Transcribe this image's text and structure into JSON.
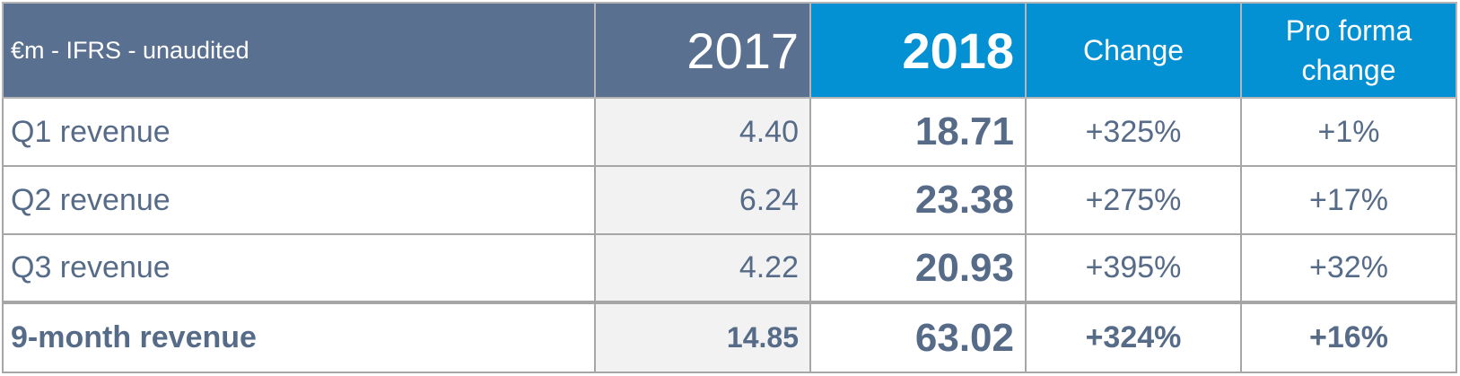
{
  "header": {
    "label": "€m - IFRS - unaudited",
    "col_2017": "2017",
    "col_2018": "2018",
    "col_change": "Change",
    "col_pro_forma": "Pro forma change"
  },
  "rows": [
    {
      "label": "Q1 revenue",
      "v2017": "4.40",
      "v2018": "18.71",
      "change": "+325%",
      "pro_forma": "+1%"
    },
    {
      "label": "Q2 revenue",
      "v2017": "6.24",
      "v2018": "23.38",
      "change": "+275%",
      "pro_forma": "+17%"
    },
    {
      "label": "Q3 revenue",
      "v2017": "4.22",
      "v2018": "20.93",
      "change": "+395%",
      "pro_forma": "+32%"
    }
  ],
  "total": {
    "label": "9-month revenue",
    "v2017": "14.85",
    "v2018": "63.02",
    "change": "+324%",
    "pro_forma": "+16%"
  },
  "colors": {
    "header_dark": "#5a7090",
    "header_accent": "#0491d3",
    "text": "#566b88",
    "cell_shade": "#f2f2f2"
  }
}
